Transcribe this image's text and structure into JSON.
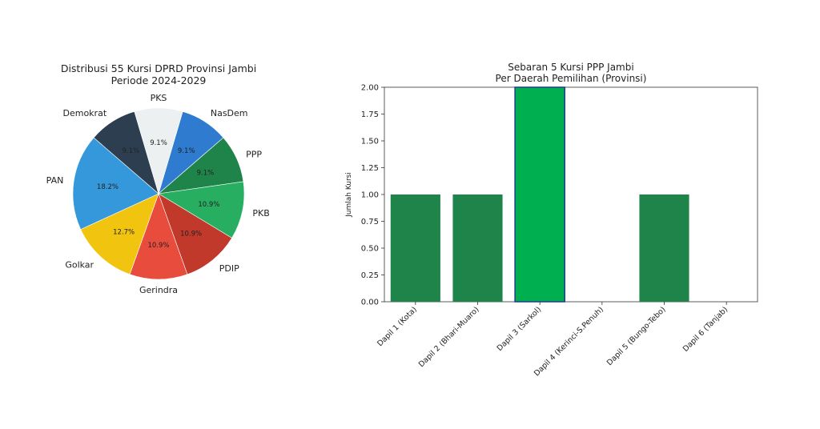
{
  "chart_data": [
    {
      "type": "pie",
      "title": "Distribusi 55 Kursi DPRD Provinsi Jambi\nPeriode 2024-2029",
      "slices": [
        {
          "label": "NasDem",
          "value": 9.1,
          "pct_label": "9.1%",
          "color": "#2e7bcf"
        },
        {
          "label": "PPP",
          "value": 9.1,
          "pct_label": "9.1%",
          "color": "#1e8449"
        },
        {
          "label": "PKB",
          "value": 10.9,
          "pct_label": "10.9%",
          "color": "#27ae60"
        },
        {
          "label": "PDIP",
          "value": 10.9,
          "pct_label": "10.9%",
          "color": "#c0392b"
        },
        {
          "label": "Gerindra",
          "value": 10.9,
          "pct_label": "10.9%",
          "color": "#e74c3c"
        },
        {
          "label": "Golkar",
          "value": 12.7,
          "pct_label": "12.7%",
          "color": "#f1c40f"
        },
        {
          "label": "PAN",
          "value": 18.2,
          "pct_label": "18.2%",
          "color": "#3498db"
        },
        {
          "label": "Demokrat",
          "value": 9.1,
          "pct_label": "9.1%",
          "color": "#2c3e50"
        },
        {
          "label": "PKS",
          "value": 9.1,
          "pct_label": "9.1%",
          "color": "#ecf0f1"
        }
      ]
    },
    {
      "type": "bar",
      "title": "Sebaran 5 Kursi PPP Jambi\nPer Daerah Pemilihan (Provinsi)",
      "xlabel": "",
      "ylabel": "Jumlah Kursi",
      "ylim": [
        0,
        2.0
      ],
      "yticks": [
        "0.00",
        "0.25",
        "0.50",
        "0.75",
        "1.00",
        "1.25",
        "1.50",
        "1.75",
        "2.00"
      ],
      "grid": false,
      "categories": [
        "Dapil 1 (Kota)",
        "Dapil 2 (Bhari-Muaro)",
        "Dapil 3 (Sarkol)",
        "Dapil 4 (Kerinci-S.Penuh)",
        "Dapil 5 (Bungo-Tebo)",
        "Dapil 6 (Tanjab)"
      ],
      "values": [
        1,
        1,
        2,
        0,
        1,
        0
      ],
      "colors": [
        "#1e8449",
        "#1e8449",
        "#00b050",
        "#1e8449",
        "#1e8449",
        "#1e8449"
      ]
    }
  ]
}
